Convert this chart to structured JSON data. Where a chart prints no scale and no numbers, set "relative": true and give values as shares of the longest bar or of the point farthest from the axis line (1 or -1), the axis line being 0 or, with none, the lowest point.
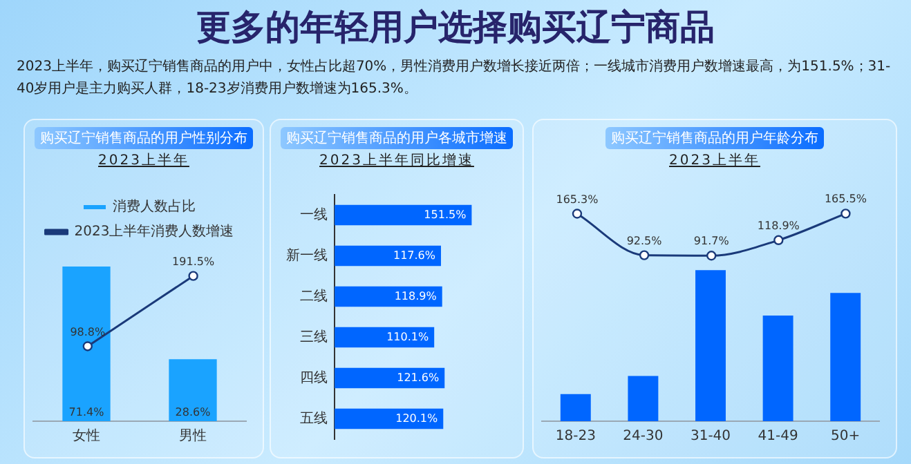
{
  "chart_data": [
    {
      "type": "other",
      "title": "更多的年轻用户选择购买辽宁商品",
      "annotations": [
        "2023上半年，购买辽宁销售商品的用户中，女性占比超70%，男性消费用户数增长接近两倍；一线城市消费用户数增速最高，为151.5%；31-40岁用户是主力购买人群，18-23岁消费用户数增速为165.3%。"
      ]
    },
    {
      "type": "bar",
      "title": "购买辽宁销售商品的用户性别分布",
      "subtitle": "2023上半年",
      "categories": [
        "女性",
        "男性"
      ],
      "legend": "top",
      "tick_labels": "x",
      "grid": false,
      "series": [
        {
          "name": "消费人数占比",
          "type": "bar",
          "color": "#1aa3ff",
          "values": [
            71.4,
            28.6
          ],
          "value_labels": [
            "71.4%",
            "28.6%"
          ]
        }
      ]
    },
    {
      "type": "line",
      "legend": "top",
      "tick_labels": false,
      "grid": false,
      "series": [
        {
          "name": "2023上半年消费人数增速",
          "type": "line",
          "color": "#1a3a7a",
          "marker": "circle",
          "values": [
            98.8,
            191.5
          ],
          "value_labels": [
            "98.8%",
            "191.5%"
          ]
        }
      ]
    },
    {
      "type": "bar",
      "orientation": "horizontal",
      "title": "购买辽宁销售商品的用户各城市增速",
      "subtitle": "2023上半年同比增速",
      "categories": [
        "一线",
        "新一线",
        "二线",
        "三线",
        "四线",
        "五线"
      ],
      "tick_labels": "y",
      "grid": false,
      "color": "#0066ff",
      "values": [
        151.5,
        117.6,
        118.9,
        110.1,
        121.6,
        120.1
      ],
      "value_labels": [
        "151.5%",
        "117.6%",
        "118.9%",
        "110.1%",
        "121.6%",
        "120.1%"
      ]
    },
    {
      "type": "line",
      "title": "购买辽宁销售商品的用户年龄分布",
      "subtitle": "2023上半年",
      "tick_labels": false,
      "grid": false,
      "color": "#1a3a7a",
      "marker": "circle",
      "values": [
        165.3,
        92.5,
        91.7,
        118.9,
        165.5
      ],
      "value_labels": [
        "165.3%",
        "92.5%",
        "91.7%",
        "118.9%",
        "165.5%"
      ]
    },
    {
      "type": "bar",
      "relative": true,
      "categories": [
        "18-23",
        "24-30",
        "31-40",
        "41-49",
        "50+"
      ],
      "tick_labels": "x",
      "grid": false,
      "color": "#0066ff",
      "values": [
        0.18,
        0.3,
        1,
        0.7,
        0.85
      ]
    }
  ]
}
